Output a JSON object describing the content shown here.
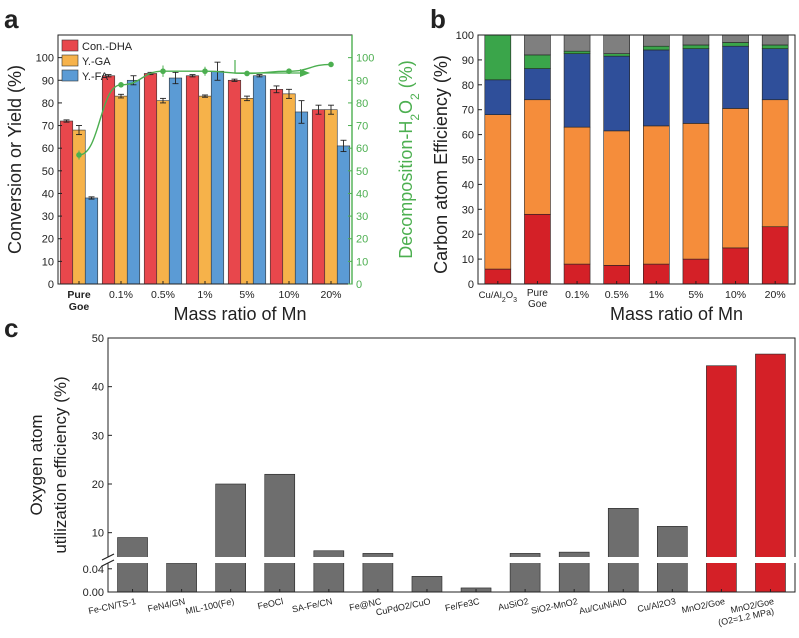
{
  "panels": {
    "a": {
      "letter": "a"
    },
    "b": {
      "letter": "b"
    },
    "c": {
      "letter": "c"
    }
  },
  "chart_data": [
    {
      "panel": "a",
      "type": "bar",
      "categories": [
        "Pure Goe",
        "0.1%",
        "0.5%",
        "1%",
        "5%",
        "10%",
        "20%"
      ],
      "category_lines": [
        [
          "Pure",
          "Goe"
        ],
        [
          "0.1%"
        ],
        [
          "0.5%"
        ],
        [
          "1%"
        ],
        [
          "5%"
        ],
        [
          "10%"
        ],
        [
          "20%"
        ]
      ],
      "xlabel": "Mass ratio of Mn",
      "ylabel": "Conversion or Yield (%)",
      "ylim": [
        0,
        110
      ],
      "yticks": [
        0,
        10,
        20,
        30,
        40,
        50,
        60,
        70,
        80,
        90,
        100
      ],
      "series": [
        {
          "name": "Con.-DHA",
          "color": "#e8474c",
          "values": [
            72,
            92,
            93,
            92,
            90,
            86,
            77
          ],
          "errors": [
            0.5,
            0.5,
            0.5,
            0.5,
            0.5,
            1.5,
            2
          ]
        },
        {
          "name": "Y.-GA",
          "color": "#f6b24a",
          "values": [
            68,
            83,
            81,
            83,
            82,
            84,
            77
          ],
          "errors": [
            2,
            0.8,
            1,
            0.5,
            1,
            2,
            2
          ]
        },
        {
          "name": "Y.-FA",
          "color": "#5b9bd5",
          "values": [
            38,
            90,
            91,
            94,
            92,
            76,
            61
          ],
          "errors": [
            0.5,
            2,
            2.5,
            4,
            0.5,
            5,
            2.5
          ]
        }
      ],
      "y2": {
        "label": "Decomposition-H2O2 (%)",
        "label_text": "Decomposition-H",
        "label_sub": "2",
        "label_mid": "O",
        "label_sub2": "2",
        "label_tail": " (%)",
        "color": "#4caf50",
        "ylim": [
          0,
          100
        ],
        "yticks": [
          0,
          10,
          20,
          30,
          40,
          50,
          60,
          70,
          80,
          90,
          100
        ],
        "values": [
          57,
          88,
          94,
          94,
          93,
          94,
          97
        ],
        "errors": [
          2,
          1,
          2.5,
          2,
          0.5,
          0.5,
          0.5
        ]
      }
    },
    {
      "panel": "b",
      "type": "stacked-bar",
      "categories": [
        "Cu/Al2O3",
        "Pure Goe",
        "0.1%",
        "0.5%",
        "1%",
        "5%",
        "10%",
        "20%"
      ],
      "xlabel": "Mass ratio of Mn",
      "ylabel": "Carbon atom Efficiency (%)",
      "ylim": [
        0,
        100
      ],
      "yticks": [
        0,
        10,
        20,
        30,
        40,
        50,
        60,
        70,
        80,
        90,
        100
      ],
      "series": [
        {
          "color": "#d42027",
          "values": [
            6,
            28,
            8,
            7.5,
            8,
            10,
            14.5,
            23
          ]
        },
        {
          "color": "#f58d3b",
          "values": [
            62,
            46,
            55,
            54,
            55.5,
            54.5,
            56,
            51
          ]
        },
        {
          "color": "#2f4f9a",
          "values": [
            14,
            12.5,
            29.5,
            30,
            30.5,
            30,
            25,
            20.5
          ]
        },
        {
          "color": "#3aa54a",
          "values": [
            18,
            5.5,
            1,
            1,
            1.5,
            1.5,
            1.5,
            1.5
          ]
        },
        {
          "color": "#7f7f7f",
          "values": [
            0,
            8,
            6.5,
            7.5,
            4.5,
            4,
            3,
            4
          ]
        }
      ]
    },
    {
      "panel": "c",
      "type": "bar",
      "categories": [
        "Fe-CN/TS-1",
        "FeN4/GN",
        "MIL-100(Fe)",
        "FeOCl",
        "SA-Fe/CN",
        "Fe@NC",
        "CuPdO2/CuO",
        "Fe/Fe3C",
        "AuSiO2",
        "SiO2-MnO2",
        "Au/CuNiAlO",
        "Cu/Al2O3",
        "MnO2/Goe",
        "MnO2/Goe (O2=1.2 MPa)"
      ],
      "category_lines": [
        [
          "Fe-CN/TS-1"
        ],
        [
          "FeN4/GN"
        ],
        [
          "MIL-100(Fe)"
        ],
        [
          "FeOCl"
        ],
        [
          "SA-Fe/CN"
        ],
        [
          "Fe@NC"
        ],
        [
          "CuPdO2/CuO"
        ],
        [
          "Fe/Fe3C"
        ],
        [
          "AuSiO2"
        ],
        [
          "SiO2-MnO2"
        ],
        [
          "Au/CuNiAlO"
        ],
        [
          "Cu/Al2O3"
        ],
        [
          "MnO2/Goe"
        ],
        [
          "MnO2/Goe",
          "(O2=1.2 MPa)"
        ]
      ],
      "ylabel": "Oxygen atom utilization efficiency (%)",
      "ylabel_lines": [
        "Oxygen atom",
        "utilization efficiency (%)"
      ],
      "broken_axis": true,
      "upper_ylim": [
        5,
        50
      ],
      "lower_ylim": [
        0,
        0.04
      ],
      "yticks_upper": [
        "10",
        "20",
        "30",
        "40",
        "50"
      ],
      "yticks_lower": [
        "0.00",
        "0.04"
      ],
      "values": [
        9,
        0.05,
        20,
        22,
        2.6,
        1.5,
        0.027,
        0.007,
        1.5,
        6,
        15,
        11.3,
        44.3,
        46.7
      ],
      "colors": [
        "#6e6e6e",
        "#6e6e6e",
        "#6e6e6e",
        "#6e6e6e",
        "#6e6e6e",
        "#6e6e6e",
        "#6e6e6e",
        "#6e6e6e",
        "#6e6e6e",
        "#6e6e6e",
        "#6e6e6e",
        "#6e6e6e",
        "#d42027",
        "#d42027"
      ]
    }
  ]
}
